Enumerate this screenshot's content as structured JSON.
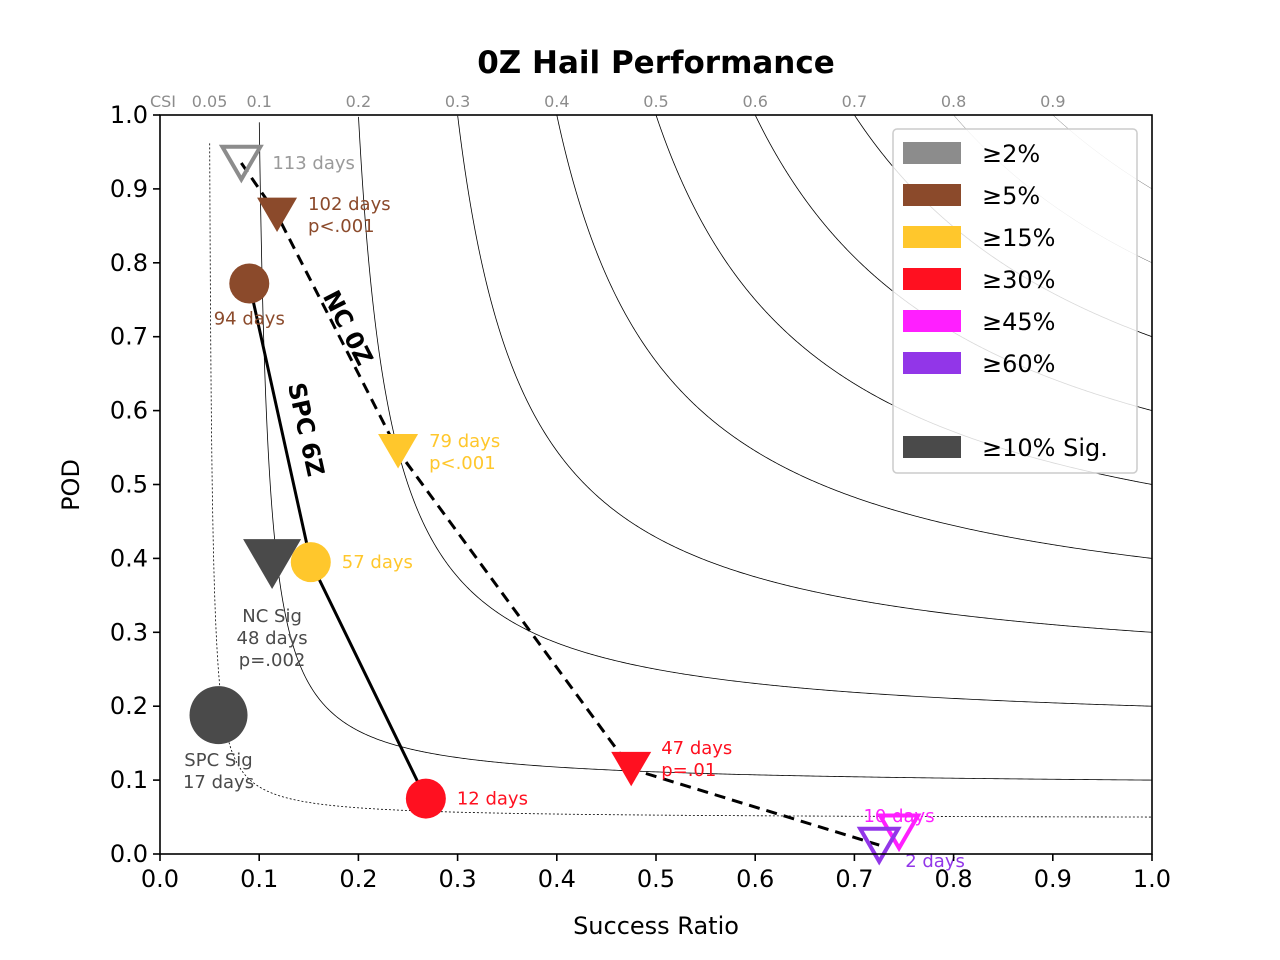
{
  "chart_data": {
    "type": "scatter",
    "title": "0Z Hail Performance",
    "xlabel": "Success Ratio",
    "ylabel": "POD",
    "xlim": [
      0.0,
      1.0
    ],
    "ylim": [
      0.0,
      1.0
    ],
    "x_ticks": [
      "0.0",
      "0.1",
      "0.2",
      "0.3",
      "0.4",
      "0.5",
      "0.6",
      "0.7",
      "0.8",
      "0.9",
      "1.0"
    ],
    "y_ticks": [
      "0.0",
      "0.1",
      "0.2",
      "0.3",
      "0.4",
      "0.5",
      "0.6",
      "0.7",
      "0.8",
      "0.9",
      "1.0"
    ],
    "csi_label": "CSI",
    "csi_values": [
      0.05,
      0.1,
      0.2,
      0.3,
      0.4,
      0.5,
      0.6,
      0.7,
      0.8,
      0.9
    ],
    "csi_tick_labels": [
      "0.05",
      "0.1",
      "0.2",
      "0.3",
      "0.4",
      "0.5",
      "0.6",
      "0.7",
      "0.8",
      "0.9"
    ],
    "legend_position": "top-right",
    "legend": [
      {
        "label": "≥2%",
        "color": "#8c8c8c"
      },
      {
        "label": "≥5%",
        "color": "#8b4a2b"
      },
      {
        "label": "≥15%",
        "color": "#ffc72c"
      },
      {
        "label": "≥30%",
        "color": "#ff1020"
      },
      {
        "label": "≥45%",
        "color": "#ff1fff"
      },
      {
        "label": "≥60%",
        "color": "#9236e8"
      },
      {
        "label": "≥10% Sig.",
        "color": "#4a4a4a"
      }
    ],
    "series": [
      {
        "name": "NC 0Z",
        "marker": "triangle-down",
        "line_style": "dashed",
        "points": [
          {
            "x": 0.082,
            "y": 0.935,
            "color": "#8c8c8c",
            "filled": false,
            "label": "113 days"
          },
          {
            "x": 0.118,
            "y": 0.865,
            "color": "#8b4a2b",
            "filled": true,
            "label": "102 days\np<.001"
          },
          {
            "x": 0.24,
            "y": 0.545,
            "color": "#ffc72c",
            "filled": true,
            "label": "79 days\np<.001"
          },
          {
            "x": 0.475,
            "y": 0.115,
            "color": "#ff1020",
            "filled": true,
            "label": "47 days\np=.01"
          },
          {
            "x": 0.745,
            "y": 0.03,
            "color": "#ff1fff",
            "filled": false,
            "label": "10 days"
          },
          {
            "x": 0.725,
            "y": 0.012,
            "color": "#9236e8",
            "filled": false,
            "label": "2 days"
          }
        ]
      },
      {
        "name": "SPC 6Z",
        "marker": "circle",
        "line_style": "solid",
        "points": [
          {
            "x": 0.09,
            "y": 0.772,
            "color": "#8b4a2b",
            "filled": true,
            "label": "94 days"
          },
          {
            "x": 0.152,
            "y": 0.395,
            "color": "#ffc72c",
            "filled": true,
            "label": "57 days"
          },
          {
            "x": 0.268,
            "y": 0.075,
            "color": "#ff1020",
            "filled": true,
            "label": "12 days"
          }
        ]
      }
    ],
    "sig_points": [
      {
        "name": "NC Sig",
        "marker": "triangle-down",
        "x": 0.113,
        "y": 0.395,
        "color": "#4a4a4a",
        "label": "NC Sig\n48 days\np=.002"
      },
      {
        "name": "SPC Sig",
        "marker": "circle",
        "x": 0.059,
        "y": 0.188,
        "color": "#4a4a4a",
        "label": "SPC Sig\n17 days"
      }
    ]
  }
}
